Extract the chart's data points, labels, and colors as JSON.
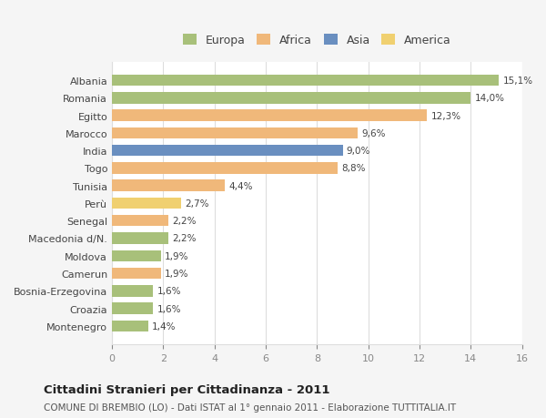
{
  "categories": [
    "Albania",
    "Romania",
    "Egitto",
    "Marocco",
    "India",
    "Togo",
    "Tunisia",
    "Perù",
    "Senegal",
    "Macedonia d/N.",
    "Moldova",
    "Camerun",
    "Bosnia-Erzegovina",
    "Croazia",
    "Montenegro"
  ],
  "values": [
    15.1,
    14.0,
    12.3,
    9.6,
    9.0,
    8.8,
    4.4,
    2.7,
    2.2,
    2.2,
    1.9,
    1.9,
    1.6,
    1.6,
    1.4
  ],
  "labels": [
    "15,1%",
    "14,0%",
    "12,3%",
    "9,6%",
    "9,0%",
    "8,8%",
    "4,4%",
    "2,7%",
    "2,2%",
    "2,2%",
    "1,9%",
    "1,9%",
    "1,6%",
    "1,6%",
    "1,4%"
  ],
  "colors": [
    "#a8c07a",
    "#a8c07a",
    "#f0b87a",
    "#f0b87a",
    "#6a8fc0",
    "#f0b87a",
    "#f0b87a",
    "#f0d070",
    "#f0b87a",
    "#a8c07a",
    "#a8c07a",
    "#f0b87a",
    "#a8c07a",
    "#a8c07a",
    "#a8c07a"
  ],
  "continent": [
    "Europa",
    "Europa",
    "Africa",
    "Africa",
    "Asia",
    "Africa",
    "Africa",
    "America",
    "Africa",
    "Europa",
    "Europa",
    "Africa",
    "Europa",
    "Europa",
    "Europa"
  ],
  "legend": {
    "Europa": "#a8c07a",
    "Africa": "#f0b87a",
    "Asia": "#6a8fc0",
    "America": "#f0d070"
  },
  "title": "Cittadini Stranieri per Cittadinanza - 2011",
  "subtitle": "COMUNE DI BREMBIO (LO) - Dati ISTAT al 1° gennaio 2011 - Elaborazione TUTTITALIA.IT",
  "xlim": [
    0,
    16
  ],
  "xticks": [
    0,
    2,
    4,
    6,
    8,
    10,
    12,
    14,
    16
  ],
  "bg_color": "#f5f5f5",
  "plot_bg": "#ffffff",
  "grid_color": "#dddddd"
}
